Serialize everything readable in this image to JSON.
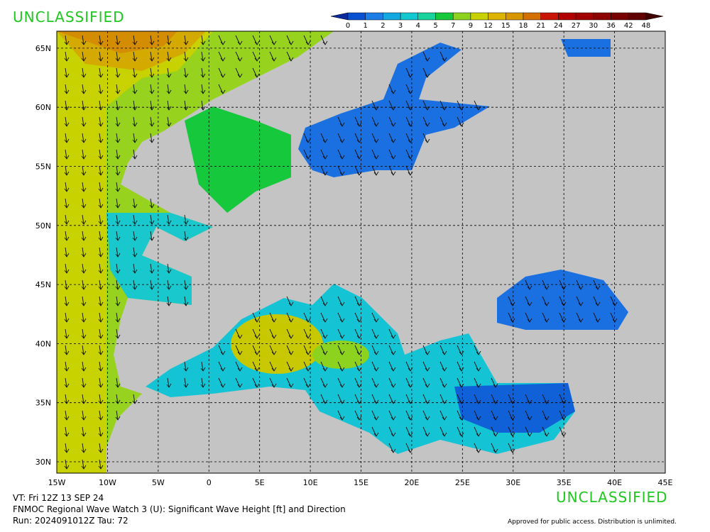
{
  "header": {
    "classification": "UNCLASSIFIED"
  },
  "colorbar": {
    "levels": [
      0,
      1,
      2,
      3,
      4,
      5,
      7,
      9,
      12,
      15,
      18,
      21,
      24,
      27,
      30,
      36,
      42,
      48
    ],
    "colors": [
      "#0a2a9e",
      "#0a50d2",
      "#1a7ee6",
      "#14a8e0",
      "#12c8d0",
      "#18d49c",
      "#16c83c",
      "#8cd21e",
      "#c8d200",
      "#dcb400",
      "#d89600",
      "#d47000",
      "#c81400",
      "#b00000",
      "#a00000",
      "#8c0000",
      "#780000",
      "#600000",
      "#400000"
    ]
  },
  "map": {
    "lon_labels": [
      "15W",
      "10W",
      "5W",
      "0",
      "5E",
      "10E",
      "15E",
      "20E",
      "25E",
      "30E",
      "35E",
      "40E",
      "45E"
    ],
    "lat_labels": [
      "30N",
      "35N",
      "40N",
      "45N",
      "50N",
      "55N",
      "60N",
      "65N"
    ]
  },
  "footer": {
    "valid_time": "VT: Fri 12Z 13 SEP 24",
    "product": "FNMOC Regional Wave Watch 3 (U): Significant Wave Height [ft] and Direction",
    "run": "Run: 2024091012Z Tau: 72",
    "classification": "UNCLASSIFIED",
    "release": "Approved for public access. Distribution is unlimited."
  }
}
